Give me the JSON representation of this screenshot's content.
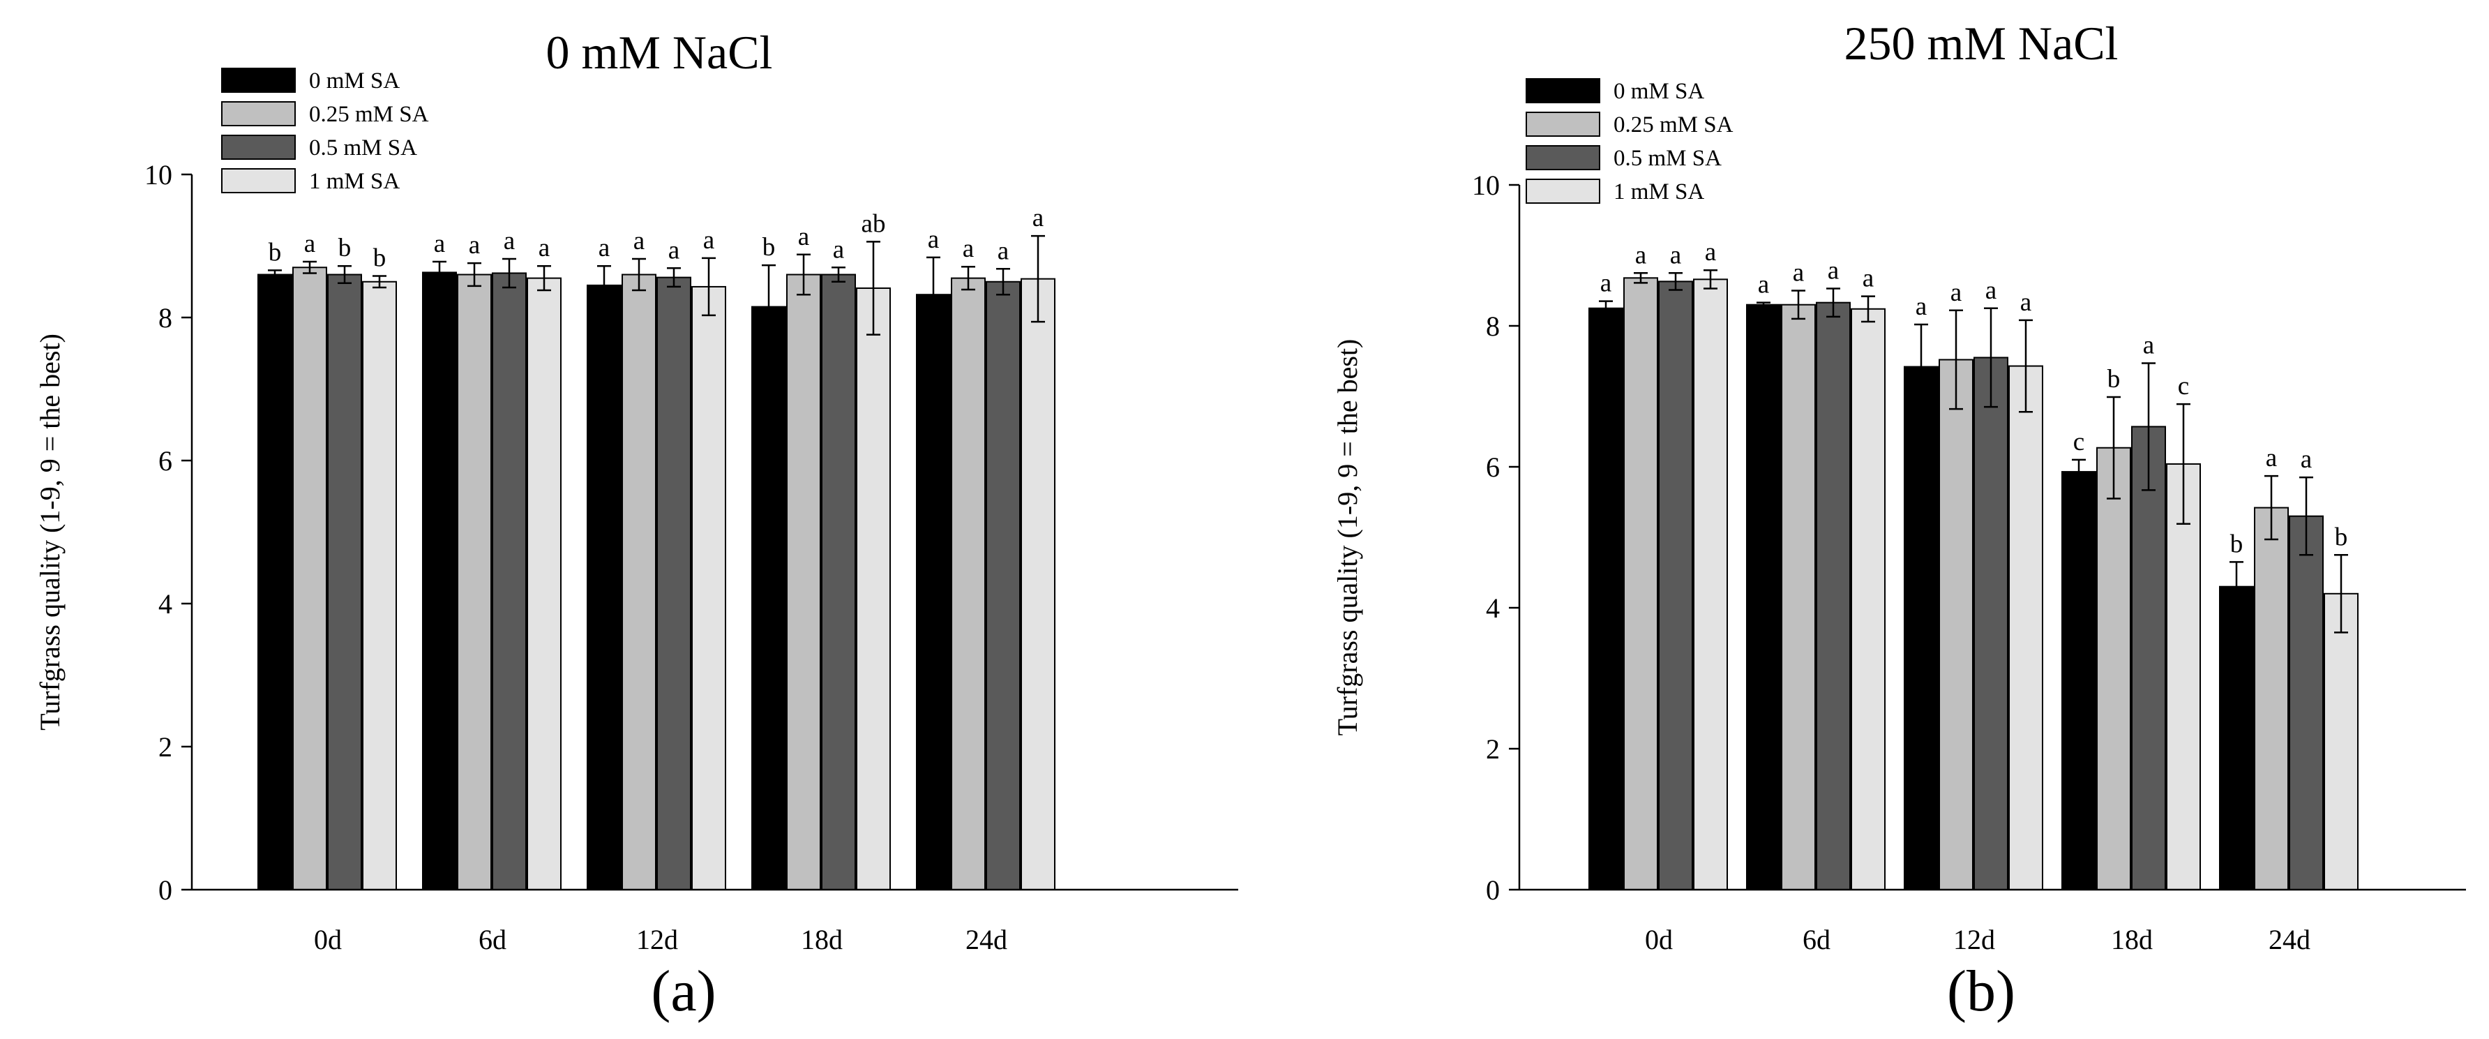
{
  "chart_data": [
    {
      "type": "bar",
      "panel_label": "(a)",
      "title": "0 mM NaCl",
      "xlabel": "",
      "ylabel": "Turfgrass quality (1-9, 9 = the best)",
      "ylim": [
        0,
        10
      ],
      "yticks": [
        "0",
        "2",
        "4",
        "6",
        "8",
        "10"
      ],
      "categories": [
        "0d",
        "6d",
        "12d",
        "18d",
        "24d"
      ],
      "legend_position": "top-left",
      "series": [
        {
          "name": "0 mM SA",
          "color": "#000000",
          "values": [
            8.6,
            8.63,
            8.45,
            8.15,
            8.32
          ],
          "errors": [
            0.06,
            0.15,
            0.27,
            0.58,
            0.52
          ],
          "labels": [
            "b",
            "a",
            "a",
            "b",
            "a"
          ]
        },
        {
          "name": "0.25 mM SA",
          "color": "#c0c0c0",
          "values": [
            8.7,
            8.6,
            8.6,
            8.6,
            8.55
          ],
          "errors": [
            0.08,
            0.16,
            0.22,
            0.28,
            0.16
          ],
          "labels": [
            "a",
            "a",
            "a",
            "a",
            "a"
          ]
        },
        {
          "name": "0.5 mM SA",
          "color": "#5a5a5a",
          "values": [
            8.6,
            8.62,
            8.56,
            8.6,
            8.5
          ],
          "errors": [
            0.12,
            0.2,
            0.13,
            0.1,
            0.18
          ],
          "labels": [
            "b",
            "a",
            "a",
            "a",
            "a"
          ]
        },
        {
          "name": "1 mM SA",
          "color": "#e3e3e3",
          "values": [
            8.5,
            8.55,
            8.43,
            8.41,
            8.54
          ],
          "errors": [
            0.08,
            0.17,
            0.4,
            0.65,
            0.6
          ],
          "labels": [
            "b",
            "a",
            "a",
            "ab",
            "a"
          ]
        }
      ]
    },
    {
      "type": "bar",
      "panel_label": "(b)",
      "title": "250 mM NaCl",
      "xlabel": "",
      "ylabel": "Turfgrass quality (1-9, 9 = the best)",
      "ylim": [
        0,
        10
      ],
      "yticks": [
        "0",
        "2",
        "4",
        "6",
        "8",
        "10"
      ],
      "categories": [
        "0d",
        "6d",
        "12d",
        "18d",
        "24d"
      ],
      "legend_position": "top-left",
      "series": [
        {
          "name": "0 mM SA",
          "color": "#000000",
          "values": [
            8.25,
            8.3,
            7.42,
            5.93,
            4.3
          ],
          "errors": [
            0.1,
            0.03,
            0.6,
            0.17,
            0.35
          ],
          "labels": [
            "a",
            "a",
            "a",
            "c",
            "b"
          ]
        },
        {
          "name": "0.25 mM SA",
          "color": "#c0c0c0",
          "values": [
            8.68,
            8.3,
            7.52,
            6.27,
            5.42
          ],
          "errors": [
            0.07,
            0.2,
            0.7,
            0.72,
            0.45
          ],
          "labels": [
            "a",
            "a",
            "a",
            "b",
            "a"
          ]
        },
        {
          "name": "0.5 mM SA",
          "color": "#5a5a5a",
          "values": [
            8.63,
            8.33,
            7.55,
            6.57,
            5.3
          ],
          "errors": [
            0.12,
            0.2,
            0.7,
            0.9,
            0.55
          ],
          "labels": [
            "a",
            "a",
            "a",
            "a",
            "a"
          ]
        },
        {
          "name": "1 mM SA",
          "color": "#e3e3e3",
          "values": [
            8.66,
            8.24,
            7.43,
            6.04,
            4.2
          ],
          "errors": [
            0.13,
            0.18,
            0.65,
            0.85,
            0.55
          ],
          "labels": [
            "a",
            "a",
            "a",
            "c",
            "b"
          ]
        }
      ]
    }
  ]
}
